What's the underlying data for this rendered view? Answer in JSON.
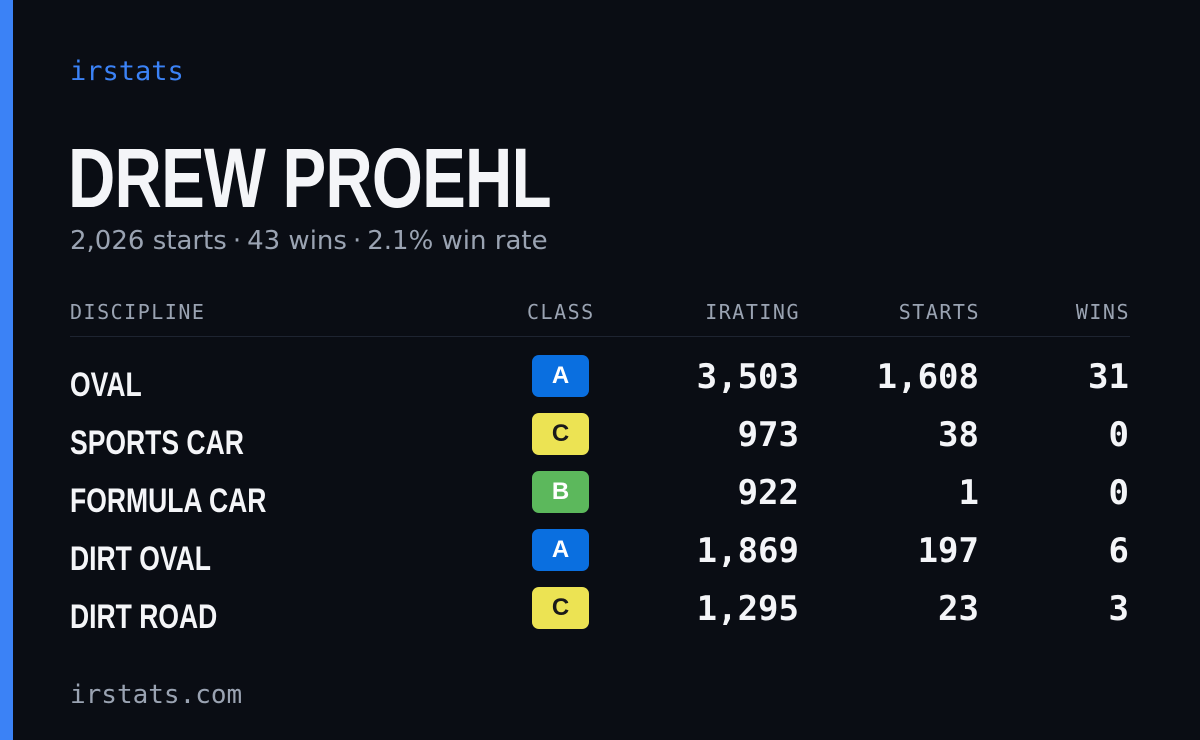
{
  "brand": "irstats",
  "driver": {
    "name": "DREW PROEHL"
  },
  "summary": {
    "starts": "2,026 starts",
    "wins": "43 wins",
    "win_rate": "2.1% win rate",
    "separator": "·"
  },
  "table": {
    "headers": {
      "discipline": "DISCIPLINE",
      "class": "CLASS",
      "irating": "IRATING",
      "starts": "STARTS",
      "wins": "WINS"
    },
    "rows": [
      {
        "discipline": "OVAL",
        "class": "A",
        "class_color": "#0a6fe0",
        "class_text_color": "#ffffff",
        "irating": "3,503",
        "starts": "1,608",
        "wins": "31"
      },
      {
        "discipline": "SPORTS CAR",
        "class": "C",
        "class_color": "#ece353",
        "class_text_color": "#1a1a1a",
        "irating": "973",
        "starts": "38",
        "wins": "0"
      },
      {
        "discipline": "FORMULA CAR",
        "class": "B",
        "class_color": "#5cb85c",
        "class_text_color": "#ffffff",
        "irating": "922",
        "starts": "1",
        "wins": "0"
      },
      {
        "discipline": "DIRT OVAL",
        "class": "A",
        "class_color": "#0a6fe0",
        "class_text_color": "#ffffff",
        "irating": "1,869",
        "starts": "197",
        "wins": "6"
      },
      {
        "discipline": "DIRT ROAD",
        "class": "C",
        "class_color": "#ece353",
        "class_text_color": "#1a1a1a",
        "irating": "1,295",
        "starts": "23",
        "wins": "3"
      }
    ]
  },
  "footer": "irstats.com",
  "colors": {
    "background": "#0a0d14",
    "accent": "#3b82f6",
    "text_primary": "#f4f5f8",
    "text_muted": "#9aa3b2"
  }
}
